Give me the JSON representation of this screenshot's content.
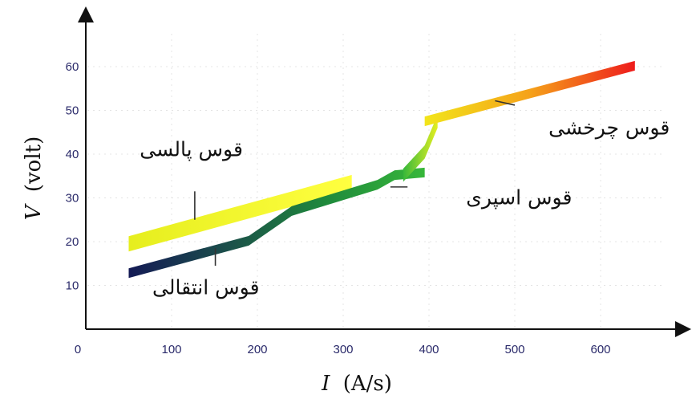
{
  "chart_data": {
    "type": "area",
    "xlabel_var": "I",
    "xlabel_unit": "(A/s)",
    "ylabel_var": "V",
    "ylabel_unit": "(volt)",
    "xlim": [
      0,
      680
    ],
    "ylim": [
      0,
      68
    ],
    "x_ticks": [
      0,
      100,
      200,
      300,
      400,
      500,
      600
    ],
    "y_ticks": [
      10,
      20,
      30,
      40,
      50,
      60
    ],
    "grid": true,
    "bands": [
      {
        "name": "pulse",
        "label": "قوس پالسی",
        "colors": [
          "#e6ee1e",
          "#ffff40"
        ],
        "x": [
          50,
          310
        ],
        "center": [
          19.5,
          33.5
        ],
        "thickness": 3.5
      },
      {
        "name": "transfer",
        "label": "قوس انتقالی",
        "colors": [
          "#141a55",
          "#1b4f4a",
          "#1f8a3c",
          "#37b73a"
        ],
        "x": [
          50,
          190,
          240,
          290,
          340,
          360,
          395
        ],
        "center": [
          12.8,
          20.2,
          27.0,
          30.0,
          33.0,
          35.2,
          35.8
        ],
        "thickness": 2.2
      },
      {
        "name": "spray",
        "label": "قوس اسپری",
        "colors": [
          "#37b73a",
          "#8fd62f",
          "#e4ee20"
        ],
        "x": [
          370,
          395,
          410
        ],
        "center": [
          35.2,
          40.5,
          47.5
        ],
        "thickness": 3.0
      },
      {
        "name": "rotating",
        "label": "قوس چرخشی",
        "colors": [
          "#f2e51a",
          "#f5a21a",
          "#ee1c1c"
        ],
        "x": [
          395,
          640
        ],
        "center": [
          47.5,
          60.2
        ],
        "thickness": 2.2
      }
    ],
    "annotations": [
      {
        "label": "قوس پالسی",
        "x": 123,
        "y": 39.5
      },
      {
        "label": "قوس انتقالی",
        "x": 140,
        "y": 8.0
      },
      {
        "label": "قوس اسپری",
        "x": 505,
        "y": 28.5
      },
      {
        "label": "قوس چرخشی",
        "x": 610,
        "y": 44.5
      }
    ]
  }
}
